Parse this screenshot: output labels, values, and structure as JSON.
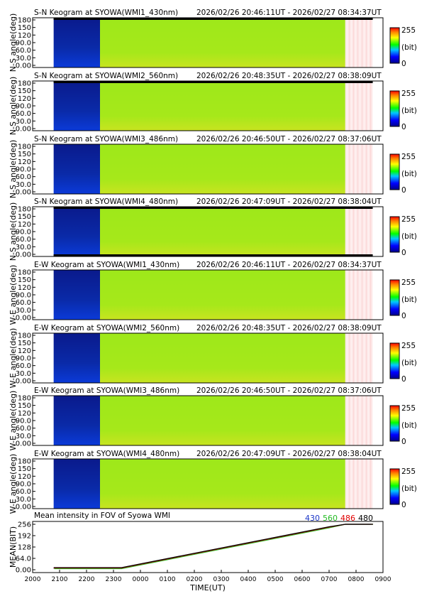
{
  "chart_data": [
    {
      "type": "heatmap",
      "title_left": "S-N Keogram at SYOWA(WMI1_430nm)",
      "title_right": "2026/02/26 20:46:11UT - 2026/02/27 08:34:37UT",
      "ylabel": "N-S angle(deg)",
      "ylim": [
        0,
        180
      ],
      "yticks": [
        "180",
        "150",
        "120",
        "90.0",
        "60.0",
        "30.0",
        "0.00"
      ],
      "colorbar": {
        "max": "255",
        "min": "0",
        "unit": "(bit)"
      },
      "top_band": true,
      "bottom_band": false
    },
    {
      "type": "heatmap",
      "title_left": "S-N Keogram at SYOWA(WMI2_560nm)",
      "title_right": "2026/02/26 20:48:35UT - 2026/02/27 08:38:09UT",
      "ylabel": "N-S angle(deg)",
      "ylim": [
        0,
        180
      ],
      "yticks": [
        "180",
        "150",
        "120",
        "90.0",
        "60.0",
        "30.0",
        "0.00"
      ],
      "colorbar": {
        "max": "255",
        "min": "0",
        "unit": "(bit)"
      },
      "top_band": true,
      "bottom_band": false
    },
    {
      "type": "heatmap",
      "title_left": "S-N Keogram at SYOWA(WMI3_486nm)",
      "title_right": "2026/02/26 20:46:50UT - 2026/02/27 08:37:06UT",
      "ylabel": "N-S angle(deg)",
      "ylim": [
        0,
        180
      ],
      "yticks": [
        "180",
        "150",
        "120",
        "90.0",
        "60.0",
        "30.0",
        "0.00"
      ],
      "colorbar": {
        "max": "255",
        "min": "0",
        "unit": "(bit)"
      },
      "top_band": false,
      "bottom_band": false
    },
    {
      "type": "heatmap",
      "title_left": "S-N Keogram at SYOWA(WMI4_480nm)",
      "title_right": "2026/02/26 20:47:09UT - 2026/02/27 08:38:04UT",
      "ylabel": "N-S angle(deg)",
      "ylim": [
        0,
        180
      ],
      "yticks": [
        "180",
        "150",
        "120",
        "90.0",
        "60.0",
        "30.0",
        "0.00"
      ],
      "colorbar": {
        "max": "255",
        "min": "0",
        "unit": "(bit)"
      },
      "top_band": true,
      "bottom_band": true
    },
    {
      "type": "heatmap",
      "title_left": "E-W Keogram at SYOWA(WMI1_430nm)",
      "title_right": "2026/02/26 20:46:11UT - 2026/02/27 08:34:37UT",
      "ylabel": "W-E angle(deg)",
      "ylim": [
        0,
        180
      ],
      "yticks": [
        "180",
        "150",
        "120",
        "90.0",
        "60.0",
        "30.0",
        "0.00"
      ],
      "colorbar": {
        "max": "255",
        "min": "0",
        "unit": "(bit)"
      },
      "top_band": false,
      "bottom_band": false
    },
    {
      "type": "heatmap",
      "title_left": "E-W Keogram at SYOWA(WMI2_560nm)",
      "title_right": "2026/02/26 20:48:35UT - 2026/02/27 08:38:09UT",
      "ylabel": "W-E angle(deg)",
      "ylim": [
        0,
        180
      ],
      "yticks": [
        "180",
        "150",
        "120",
        "90.0",
        "60.0",
        "30.0",
        "0.00"
      ],
      "colorbar": {
        "max": "255",
        "min": "0",
        "unit": "(bit)"
      },
      "top_band": false,
      "bottom_band": false
    },
    {
      "type": "heatmap",
      "title_left": "E-W Keogram at SYOWA(WMI3_486nm)",
      "title_right": "2026/02/26 20:46:50UT - 2026/02/27 08:37:06UT",
      "ylabel": "W-E angle(deg)",
      "ylim": [
        0,
        180
      ],
      "yticks": [
        "180",
        "150",
        "120",
        "90.0",
        "60.0",
        "30.0",
        "0.00"
      ],
      "colorbar": {
        "max": "255",
        "min": "0",
        "unit": "(bit)"
      },
      "top_band": false,
      "bottom_band": false
    },
    {
      "type": "heatmap",
      "title_left": "E-W Keogram at SYOWA(WMI4_480nm)",
      "title_right": "2026/02/26 20:47:09UT - 2026/02/27 08:38:04UT",
      "ylabel": "W-E angle(deg)",
      "ylim": [
        0,
        180
      ],
      "yticks": [
        "180",
        "150",
        "120",
        "90.0",
        "60.0",
        "30.0",
        "0.00"
      ],
      "colorbar": {
        "max": "255",
        "min": "0",
        "unit": "(bit)"
      },
      "top_band": false,
      "bottom_band": false
    },
    {
      "type": "line",
      "title": "Mean intensity in FOV of Syowa WMI",
      "ylabel": "MEAN(BIT)",
      "xlabel": "TIME(UT)",
      "ylim": [
        0,
        256
      ],
      "yticks": [
        "256",
        "192",
        "128",
        "64.0",
        "0.00"
      ],
      "xticks": [
        "2000",
        "2100",
        "2200",
        "2300",
        "0000",
        "0100",
        "0200",
        "0300",
        "0400",
        "0500",
        "0600",
        "0700",
        "0800",
        "0900"
      ],
      "x_hours": [
        0,
        1,
        2,
        3,
        4,
        5,
        6,
        7,
        8,
        9,
        10,
        11,
        12,
        13
      ],
      "legend": [
        "430",
        "560",
        "486",
        "480"
      ],
      "legend_colors": [
        "#1b36c8",
        "#22bb22",
        "#e00000",
        "#000000"
      ],
      "series": [
        {
          "name": "430",
          "x": [
            20.77,
            22.5,
            23.3,
            7.0,
            7.6,
            8.57
          ],
          "y": [
            10,
            10,
            10,
            240,
            256,
            256
          ]
        },
        {
          "name": "560",
          "x": [
            20.8,
            22.5,
            23.3,
            7.0,
            7.6,
            8.63
          ],
          "y": [
            6,
            6,
            6,
            236,
            256,
            256
          ]
        },
        {
          "name": "486",
          "x": [
            20.78,
            22.5,
            23.3,
            7.0,
            7.6,
            8.62
          ],
          "y": [
            10,
            10,
            10,
            240,
            256,
            256
          ]
        },
        {
          "name": "480",
          "x": [
            20.79,
            22.5,
            23.3,
            7.0,
            7.6,
            8.63
          ],
          "y": [
            12,
            12,
            12,
            242,
            256,
            256
          ]
        }
      ]
    }
  ],
  "common": {
    "time_start_hour": 20,
    "blue_start_hour": 20.78,
    "green_start_hour": 22.5,
    "pink_start_hour": 7.6,
    "end_hour": 8.62
  }
}
